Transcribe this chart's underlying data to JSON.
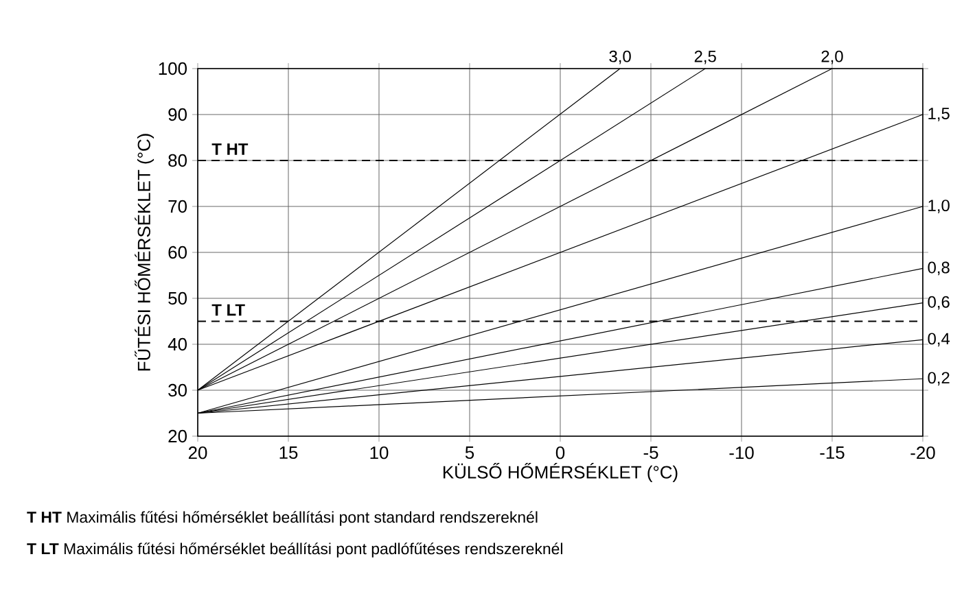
{
  "chart_data": {
    "type": "line",
    "xlabel": "KÜLSŐ HŐMÉRSÉKLET (°C)",
    "ylabel": "FŰTÉSI HŐMÉRSÉKLET (°C)",
    "xlim": [
      20,
      -20
    ],
    "xticks": [
      20,
      15,
      10,
      5,
      0,
      -5,
      -10,
      -15,
      -20
    ],
    "ylim": [
      20,
      100
    ],
    "yticks": [
      20,
      30,
      40,
      50,
      60,
      70,
      80,
      90,
      100
    ],
    "grid": true,
    "legend": "right",
    "marker": "none",
    "line_style": "solid",
    "series": [
      {
        "name": "3,0",
        "color": "#000000",
        "x": [
          20,
          -3.3
        ],
        "values": [
          30,
          100
        ]
      },
      {
        "name": "2,5",
        "color": "#000000",
        "x": [
          20,
          -8
        ],
        "values": [
          30,
          100
        ]
      },
      {
        "name": "2,0",
        "color": "#000000",
        "x": [
          20,
          -15
        ],
        "values": [
          30,
          100
        ]
      },
      {
        "name": "1,5",
        "color": "#000000",
        "x": [
          20,
          -20
        ],
        "values": [
          30,
          90
        ]
      },
      {
        "name": "1,0",
        "color": "#000000",
        "x": [
          20,
          -20
        ],
        "values": [
          25,
          70
        ]
      },
      {
        "name": "0,8",
        "color": "#000000",
        "x": [
          20,
          -20
        ],
        "values": [
          25,
          56.5
        ]
      },
      {
        "name": "0,6",
        "color": "#000000",
        "x": [
          20,
          -20
        ],
        "values": [
          25,
          49
        ]
      },
      {
        "name": "0,4",
        "color": "#000000",
        "x": [
          20,
          -20
        ],
        "values": [
          25,
          41
        ]
      },
      {
        "name": "0,2",
        "color": "#000000",
        "x": [
          20,
          -20
        ],
        "values": [
          25,
          32.5
        ]
      }
    ],
    "ref_lines": [
      {
        "axis": "y",
        "value": 80,
        "label": "T HT",
        "color": "#000000",
        "line_style": "dashed"
      },
      {
        "axis": "y",
        "value": 45,
        "label": "T LT",
        "color": "#000000",
        "line_style": "dashed"
      }
    ],
    "annotations": [
      "**T HT** Maximális fűtési hőmérséklet beállítási pont standard rendszereknél",
      "**T LT** Maximális fűtési hőmérséklet beállítási pont padlófűtéses rendszereknél"
    ]
  }
}
